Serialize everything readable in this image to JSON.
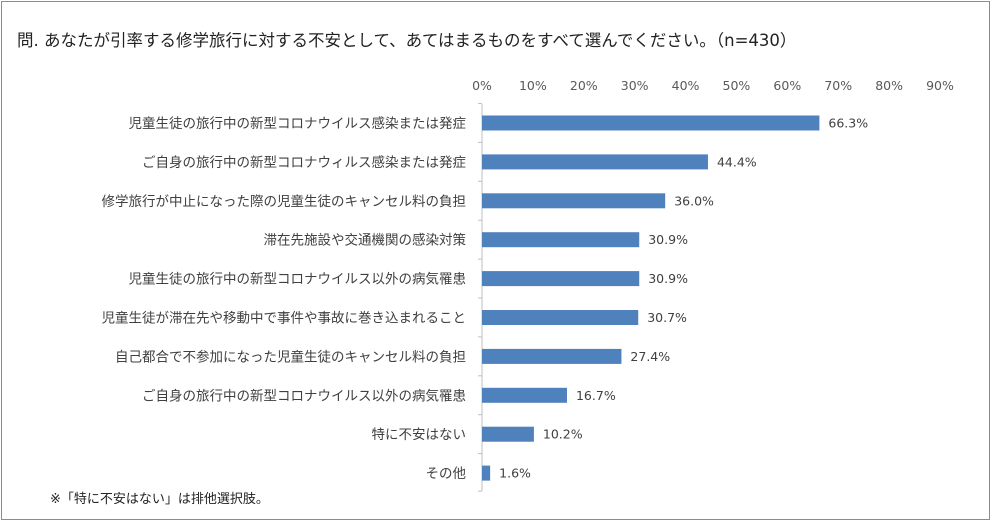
{
  "title": "問. あなたが引率する修学旅行に対する不安として、あてはまるものをすべて選んでください。（n=430）",
  "footnote": "※「特に不安はない」は排他選択肢。",
  "chart_data": {
    "type": "bar",
    "orientation": "horizontal",
    "categories": [
      "児童生徒の旅行中の新型コロナウイルス感染または発症",
      "ご自身の旅行中の新型コロナウィルス感染または発症",
      "修学旅行が中止になった際の児童生徒のキャンセル料の負担",
      "滞在先施設や交通機関の感染対策",
      "児童生徒の旅行中の新型コロナウイルス以外の病気罹患",
      "児童生徒が滞在先や移動中で事件や事故に巻き込まれること",
      "自己都合で不参加になった児童生徒のキャンセル料の負担",
      "ご自身の旅行中の新型コロナウイルス以外の病気罹患",
      "特に不安はない",
      "その他"
    ],
    "values": [
      66.3,
      44.4,
      36.0,
      30.9,
      30.9,
      30.7,
      27.4,
      16.7,
      10.2,
      1.6
    ],
    "value_labels": [
      "66.3%",
      "44.4%",
      "36.0%",
      "30.9%",
      "30.9%",
      "30.7%",
      "27.4%",
      "16.7%",
      "10.2%",
      "1.6%"
    ],
    "xlim": [
      0,
      90
    ],
    "ticks": [
      0,
      10,
      20,
      30,
      40,
      50,
      60,
      70,
      80,
      90
    ],
    "tick_labels": [
      "0%",
      "10%",
      "20%",
      "30%",
      "40%",
      "50%",
      "60%",
      "70%",
      "80%",
      "90%"
    ],
    "axis_position": "top",
    "grid": false,
    "bar_color": "#4f81bd"
  }
}
